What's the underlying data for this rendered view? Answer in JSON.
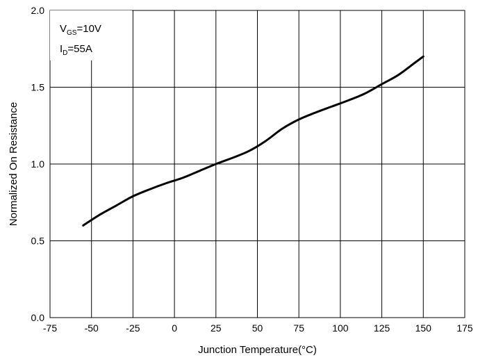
{
  "chart_data": {
    "type": "line",
    "title": "",
    "xlabel": "Junction Temperature(°C)",
    "ylabel": "Normalized On Resistance",
    "xlim": [
      -75,
      175
    ],
    "ylim": [
      0.0,
      2.0
    ],
    "xticks": [
      "-75",
      "-50",
      "-25",
      "0",
      "25",
      "50",
      "75",
      "100",
      "125",
      "150",
      "175"
    ],
    "yticks": [
      "0.0",
      "0.5",
      "1.0",
      "1.5",
      "2.0"
    ],
    "grid": true,
    "legend": "none",
    "annotations": [
      {
        "base": "V",
        "sub": "GS",
        "rest": "=10V"
      },
      {
        "base": "I",
        "sub": "D",
        "rest": "=55A"
      }
    ],
    "series": [
      {
        "x": [
          -55,
          -45,
          -35,
          -25,
          -15,
          -5,
          5,
          15,
          25,
          35,
          45,
          55,
          65,
          75,
          85,
          95,
          105,
          115,
          125,
          135,
          145,
          150
        ],
        "y": [
          0.6,
          0.67,
          0.73,
          0.79,
          0.835,
          0.875,
          0.91,
          0.955,
          1.0,
          1.04,
          1.085,
          1.15,
          1.23,
          1.29,
          1.335,
          1.375,
          1.415,
          1.46,
          1.52,
          1.58,
          1.66,
          1.7
        ],
        "color": "#000000"
      }
    ]
  }
}
